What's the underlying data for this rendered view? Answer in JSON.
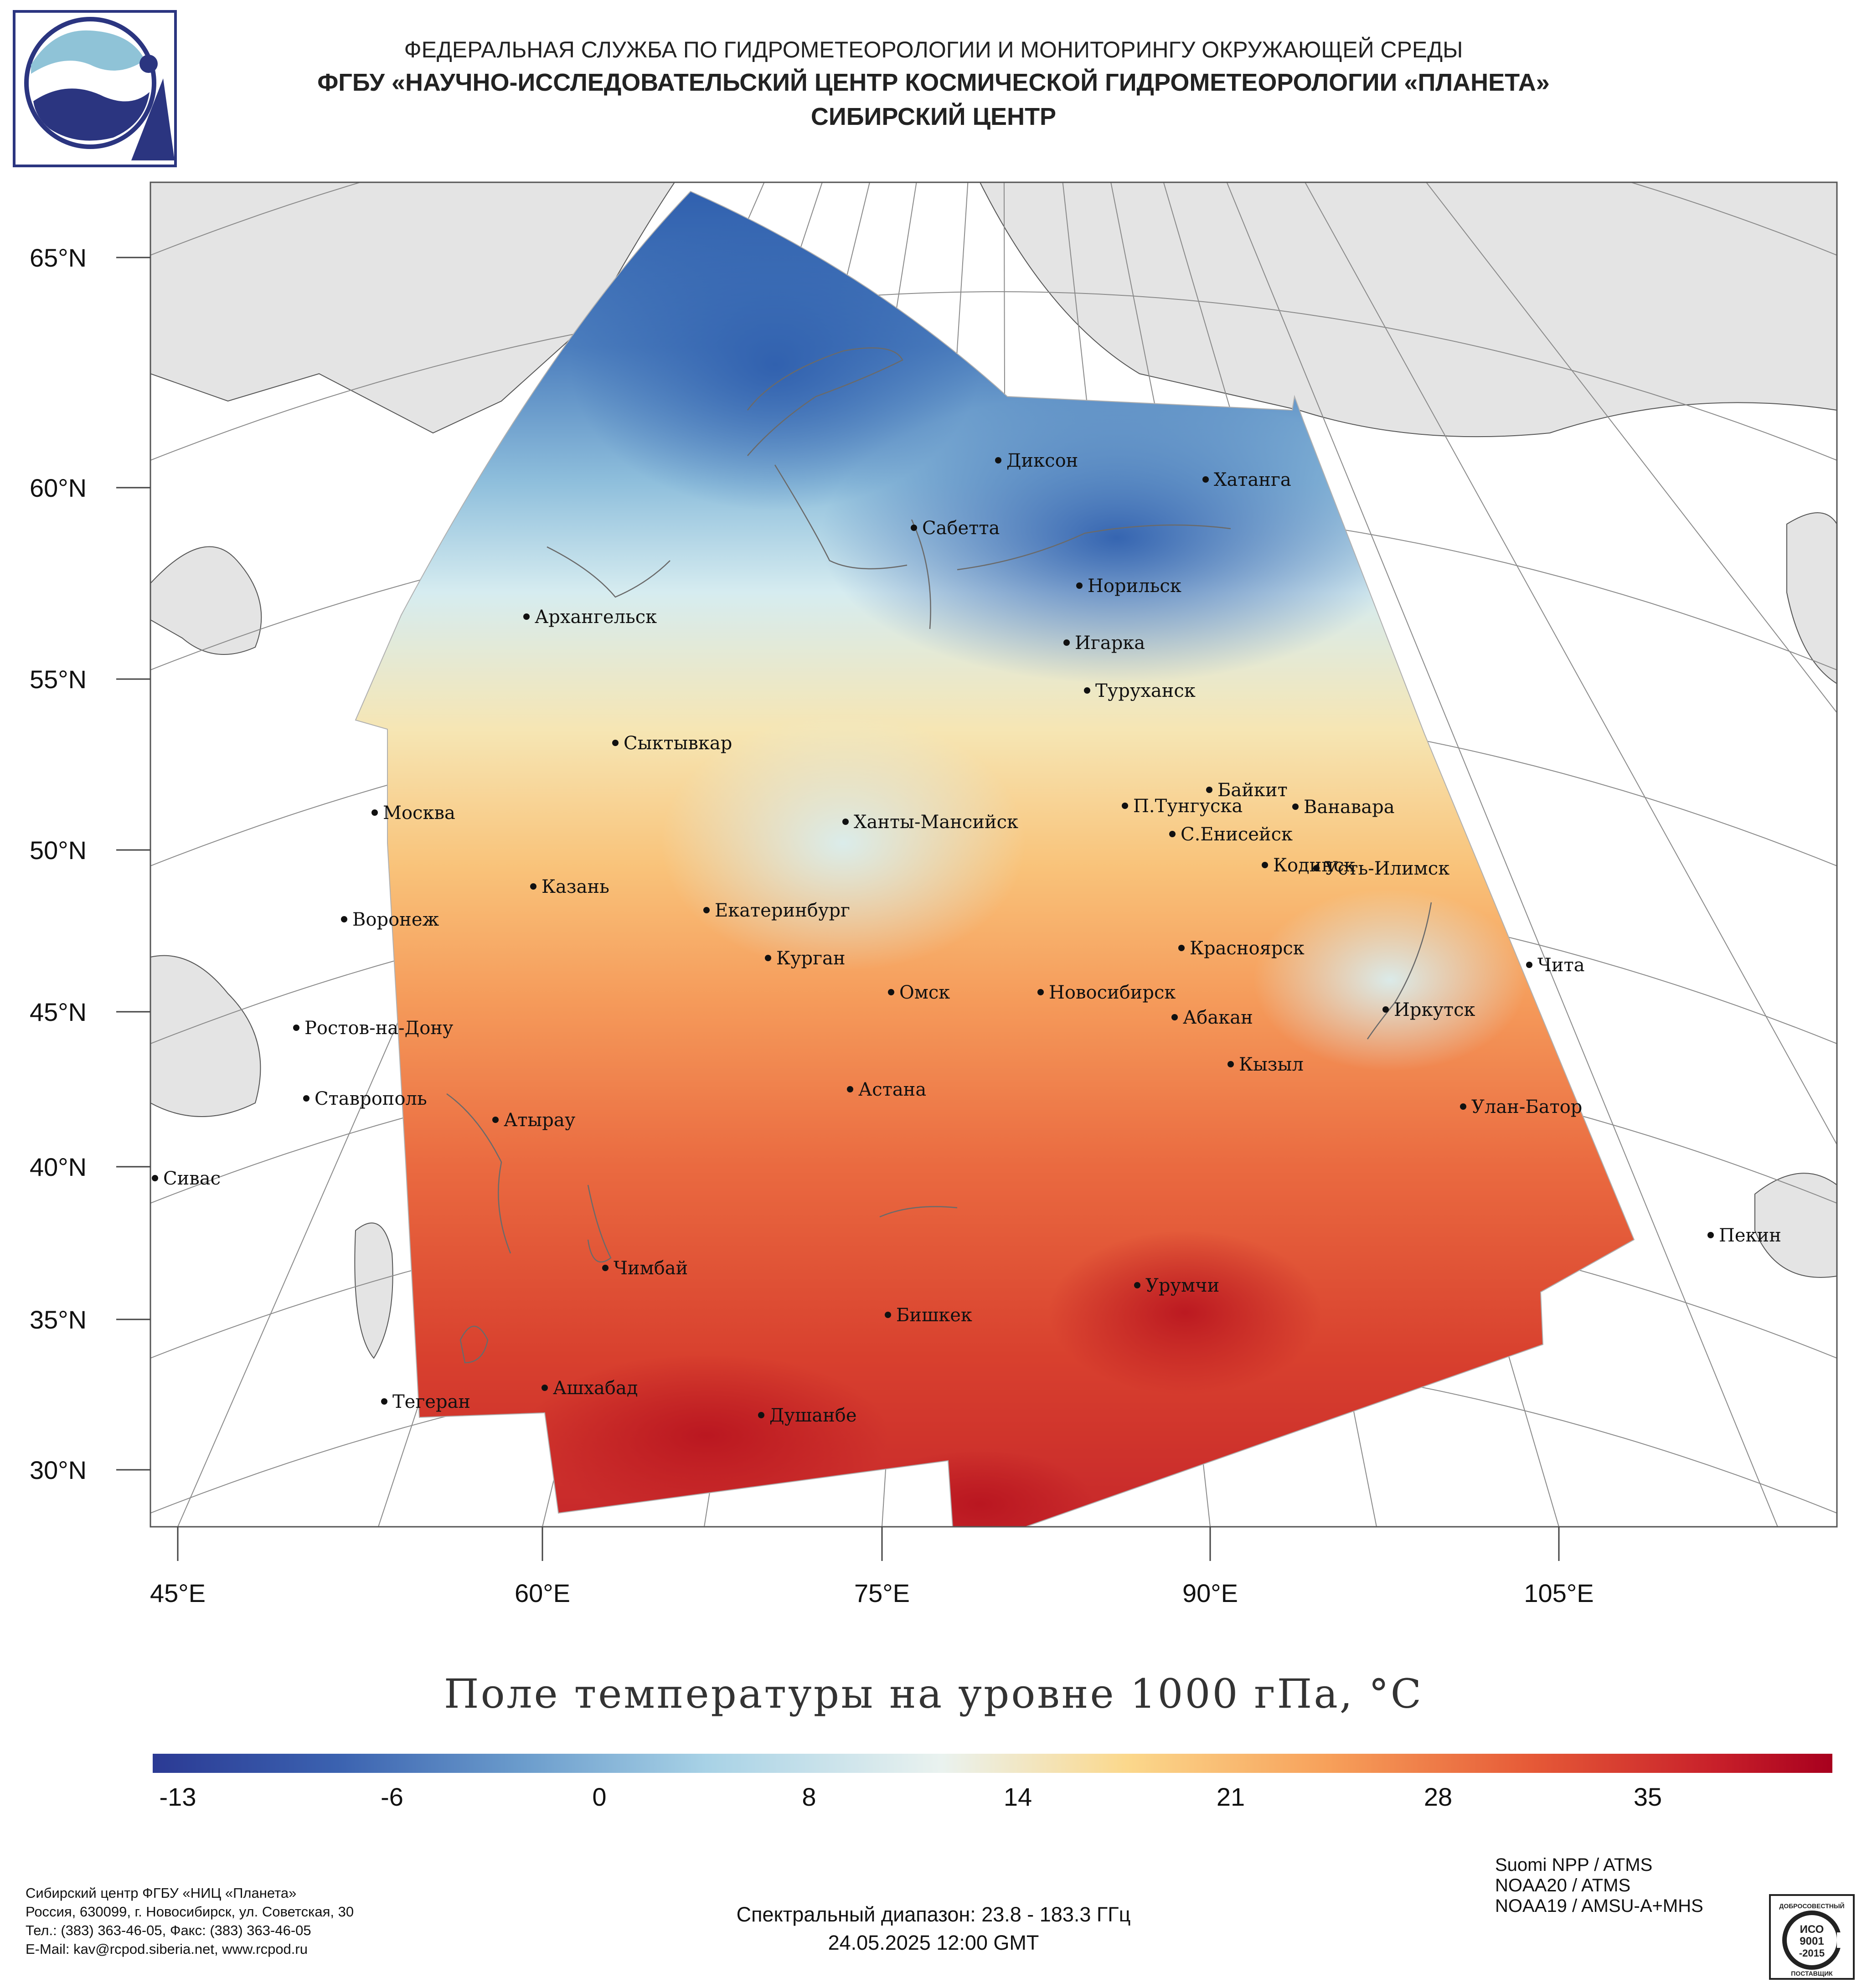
{
  "header": {
    "line1": "ФЕДЕРАЛЬНАЯ СЛУЖБА ПО ГИДРОМЕТЕОРОЛОГИИ И МОНИТОРИНГУ ОКРУЖАЮЩЕЙ СРЕДЫ",
    "line2": "ФГБУ «НАУЧНО-ИССЛЕДОВАТЕЛЬСКИЙ ЦЕНТР КОСМИЧЕСКОЙ ГИДРОМЕТЕОРОЛОГИИ «ПЛАНЕТА»",
    "line3": "СИБИРСКИЙ ЦЕНТР"
  },
  "map": {
    "lat_labels": [
      "65°N",
      "60°N",
      "55°N",
      "50°N",
      "45°N",
      "40°N",
      "35°N",
      "30°N"
    ],
    "lon_labels": [
      "45°E",
      "60°E",
      "75°E",
      "90°E",
      "105°E"
    ],
    "cities": [
      {
        "name": "Диксон"
      },
      {
        "name": "Хатанга"
      },
      {
        "name": "Сабетта"
      },
      {
        "name": "Норильск"
      },
      {
        "name": "Архангельск"
      },
      {
        "name": "Игарка"
      },
      {
        "name": "Туруханск"
      },
      {
        "name": "Сыктывкар"
      },
      {
        "name": "Байкит"
      },
      {
        "name": "П.Тунгуска"
      },
      {
        "name": "Ванавара"
      },
      {
        "name": "Москва"
      },
      {
        "name": "Ханты-Мансийск"
      },
      {
        "name": "С.Енисейск"
      },
      {
        "name": "Кодинск"
      },
      {
        "name": "Усть-Илимск"
      },
      {
        "name": "Казань"
      },
      {
        "name": "Воронеж"
      },
      {
        "name": "Екатеринбург"
      },
      {
        "name": "Красноярск"
      },
      {
        "name": "Курган"
      },
      {
        "name": "Чита"
      },
      {
        "name": "Омск"
      },
      {
        "name": "Новосибирск"
      },
      {
        "name": "Иркутск"
      },
      {
        "name": "Абакан"
      },
      {
        "name": "Ростов-на-Дону"
      },
      {
        "name": "Кызыл"
      },
      {
        "name": "Ставрополь"
      },
      {
        "name": "Астана"
      },
      {
        "name": "Улан-Батор"
      },
      {
        "name": "Атырау"
      },
      {
        "name": "Сивас"
      },
      {
        "name": "Пекин"
      },
      {
        "name": "Чимбай"
      },
      {
        "name": "Урумчи"
      },
      {
        "name": "Бишкек"
      },
      {
        "name": "Ашхабад"
      },
      {
        "name": "Тегеран"
      },
      {
        "name": "Душанбе"
      }
    ]
  },
  "title": "Поле температуры на уровне 1000 гПа, °C",
  "colorbar": {
    "ticks": [
      "-13",
      "-6",
      "0",
      "8",
      "14",
      "21",
      "28",
      "35"
    ],
    "colors": [
      "#2b3a94",
      "#3b62b0",
      "#6b9ccc",
      "#a8d2e6",
      "#eaf2ef",
      "#fbd88c",
      "#f7a05a",
      "#e65a37",
      "#c8202a",
      "#a8001e"
    ]
  },
  "footer": {
    "left": [
      "Сибирский центр ФГБУ «НИЦ «Планета»",
      "Россия, 630099, г. Новосибирск, ул. Советская, 30",
      "Тел.: (383) 363-46-05, Факс: (383) 363-46-05",
      "E-Mail: kav@rcpod.siberia.net, www.rcpod.ru"
    ],
    "center": [
      "Спектральный диапазон: 23.8 - 183.3 ГГц",
      "24.05.2025 12:00 GMT"
    ],
    "right": [
      "Suomi NPP / ATMS",
      "NOAA20 / ATMS",
      "NOAA19 / AMSU-A+MHS"
    ]
  },
  "iso_badge": {
    "top": "ДОБРОСОВЕСТНЫЙ",
    "line1": "ИСО",
    "line2": "9001",
    "line3": "-2015",
    "bottom": "ПОСТАВЩИК"
  }
}
